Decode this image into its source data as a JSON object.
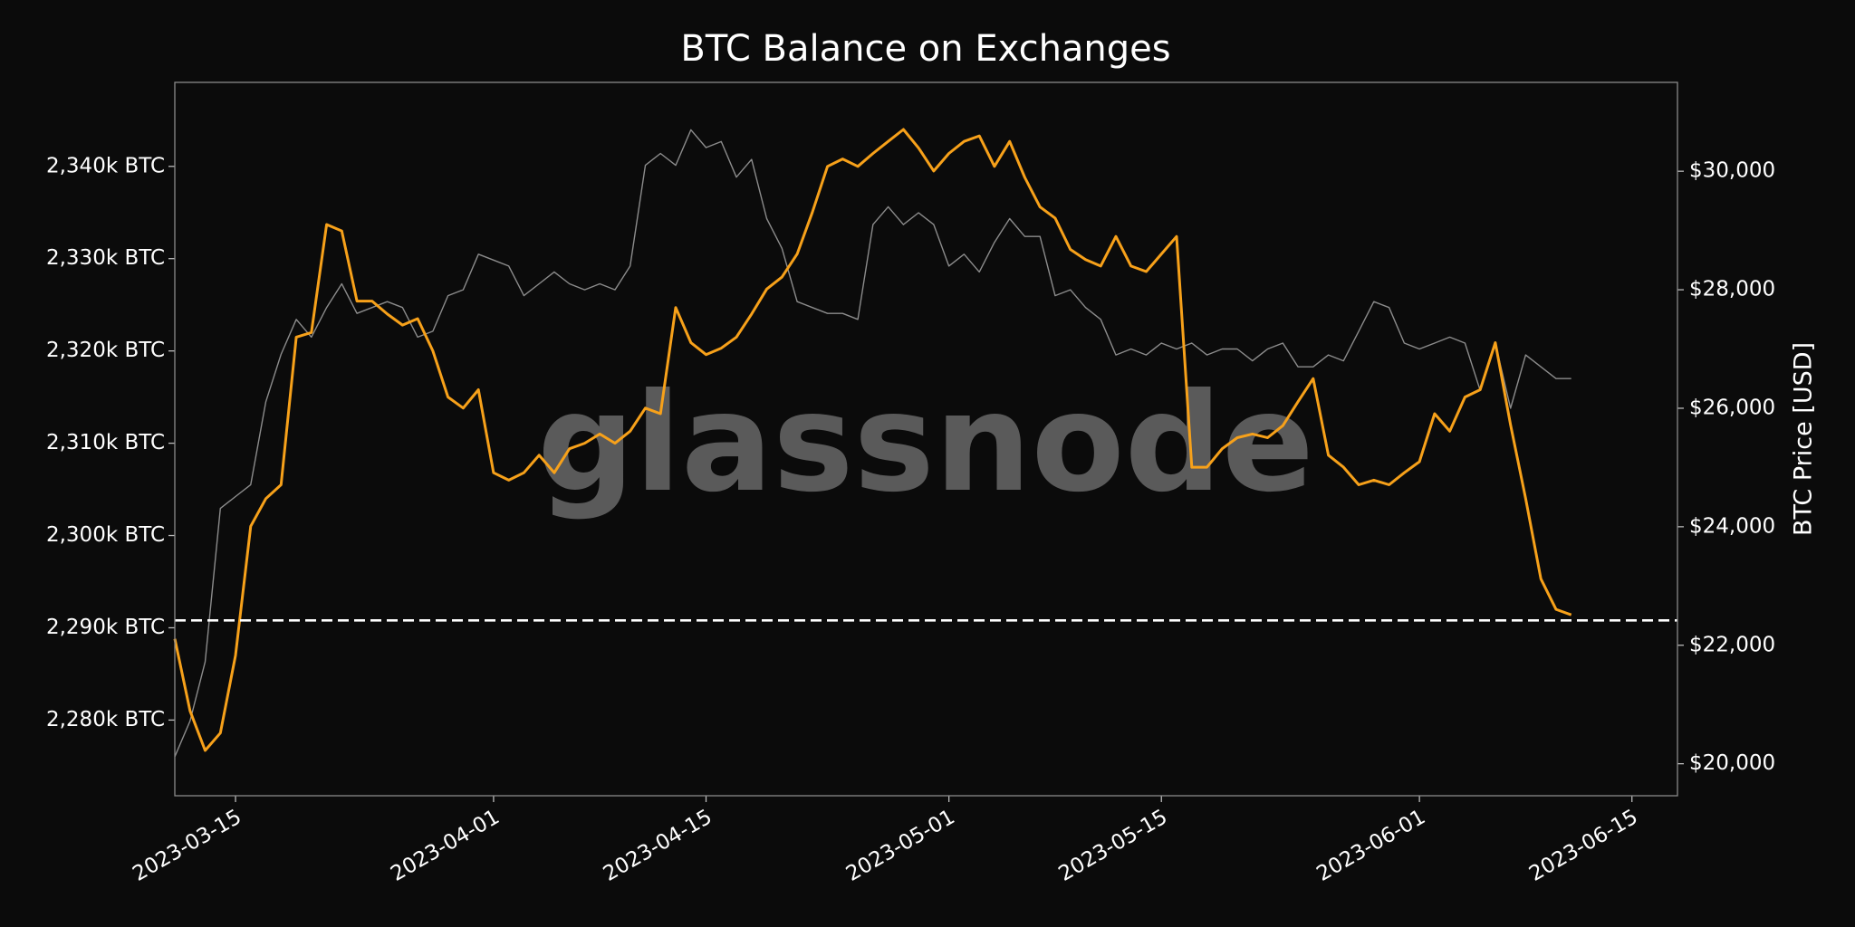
{
  "chart_data": {
    "type": "line",
    "title": "BTC Balance on Exchanges",
    "watermark": "glassnode",
    "y2label": "BTC Price [USD]",
    "x": [
      "2023-03-11",
      "2023-03-12",
      "2023-03-13",
      "2023-03-14",
      "2023-03-15",
      "2023-03-16",
      "2023-03-17",
      "2023-03-18",
      "2023-03-19",
      "2023-03-20",
      "2023-03-21",
      "2023-03-22",
      "2023-03-23",
      "2023-03-24",
      "2023-03-25",
      "2023-03-26",
      "2023-03-27",
      "2023-03-28",
      "2023-03-29",
      "2023-03-30",
      "2023-03-31",
      "2023-04-01",
      "2023-04-02",
      "2023-04-03",
      "2023-04-04",
      "2023-04-05",
      "2023-04-06",
      "2023-04-07",
      "2023-04-08",
      "2023-04-09",
      "2023-04-10",
      "2023-04-11",
      "2023-04-12",
      "2023-04-13",
      "2023-04-14",
      "2023-04-15",
      "2023-04-16",
      "2023-04-17",
      "2023-04-18",
      "2023-04-19",
      "2023-04-20",
      "2023-04-21",
      "2023-04-22",
      "2023-04-23",
      "2023-04-24",
      "2023-04-25",
      "2023-04-26",
      "2023-04-27",
      "2023-04-28",
      "2023-04-29",
      "2023-04-30",
      "2023-05-01",
      "2023-05-02",
      "2023-05-03",
      "2023-05-04",
      "2023-05-05",
      "2023-05-06",
      "2023-05-07",
      "2023-05-08",
      "2023-05-09",
      "2023-05-10",
      "2023-05-11",
      "2023-05-12",
      "2023-05-13",
      "2023-05-14",
      "2023-05-15",
      "2023-05-16",
      "2023-05-17",
      "2023-05-18",
      "2023-05-19",
      "2023-05-20",
      "2023-05-21",
      "2023-05-22",
      "2023-05-23",
      "2023-05-24",
      "2023-05-25",
      "2023-05-26",
      "2023-05-27",
      "2023-05-28",
      "2023-05-29",
      "2023-05-30",
      "2023-05-31",
      "2023-06-01",
      "2023-06-02",
      "2023-06-03",
      "2023-06-04",
      "2023-06-05",
      "2023-06-06",
      "2023-06-07",
      "2023-06-08",
      "2023-06-09",
      "2023-06-10",
      "2023-06-11"
    ],
    "series": [
      {
        "name": "BTC Price",
        "color": "#8c8c8c",
        "axis": "y2",
        "values": [
          20120,
          20720,
          21720,
          24310,
          24510,
          24710,
          26110,
          26910,
          27500,
          27200,
          27700,
          28100,
          27600,
          27700,
          27800,
          27700,
          27200,
          27300,
          27900,
          28000,
          28600,
          28500,
          28400,
          27900,
          28100,
          28300,
          28100,
          28000,
          28100,
          28000,
          28400,
          30100,
          30300,
          30100,
          30700,
          30400,
          30500,
          29900,
          30200,
          29200,
          28700,
          27800,
          27700,
          27600,
          27600,
          27500,
          29100,
          29400,
          29100,
          29300,
          29100,
          28400,
          28600,
          28300,
          28800,
          29200,
          28900,
          28900,
          27900,
          28000,
          27700,
          27500,
          26900,
          27000,
          26900,
          27100,
          27000,
          27100,
          26900,
          27000,
          27000,
          26800,
          27000,
          27100,
          26700,
          26700,
          26900,
          26800,
          27300,
          27800,
          27700,
          27100,
          27000,
          27100,
          27200,
          27100,
          26300,
          27100,
          26000,
          26900,
          26700,
          26500,
          26500
        ]
      },
      {
        "name": "BTC Balance on Exchanges",
        "color": "#f7a11a",
        "axis": "y",
        "values": [
          2288.8,
          2281,
          2276.7,
          2278.6,
          2287,
          2301,
          2304,
          2305.5,
          2321.5,
          2322,
          2333.7,
          2333,
          2325.4,
          2325.4,
          2324,
          2322.8,
          2323.5,
          2320,
          2315,
          2313.8,
          2315.8,
          2306.8,
          2306,
          2306.8,
          2308.7,
          2306.8,
          2309.4,
          2310,
          2311,
          2310,
          2311.3,
          2313.8,
          2313.2,
          2324.7,
          2320.9,
          2319.6,
          2320.3,
          2321.5,
          2324,
          2326.7,
          2328,
          2330.5,
          2335,
          2340,
          2340.8,
          2340,
          2341.4,
          2342.7,
          2344,
          2342,
          2339.5,
          2341.4,
          2342.7,
          2343.3,
          2340,
          2342.7,
          2338.8,
          2335.6,
          2334.4,
          2331,
          2329.9,
          2329.2,
          2332.4,
          2329.2,
          2328.6,
          2330.5,
          2332.4,
          2307.4,
          2307.4,
          2309.4,
          2310.6,
          2311,
          2310.6,
          2311.9,
          2314.5,
          2317,
          2308.7,
          2307.4,
          2305.5,
          2306,
          2305.5,
          2306.8,
          2308,
          2313.2,
          2311.3,
          2315,
          2315.8,
          2320.9,
          2312,
          2304,
          2295.3,
          2292,
          2291.4
        ]
      }
    ],
    "reference_line": 2290.8,
    "xlim": [
      "2023-03-11",
      "2023-06-18"
    ],
    "xticks": [
      "2023-03-15",
      "2023-04-01",
      "2023-04-15",
      "2023-05-01",
      "2023-05-15",
      "2023-06-01",
      "2023-06-15"
    ],
    "ylim": [
      2271.8,
      2349.1
    ],
    "yticks": [
      {
        "value": 2280,
        "label": "2,280k BTC"
      },
      {
        "value": 2290,
        "label": "2,290k BTC"
      },
      {
        "value": 2300,
        "label": "2,300k BTC"
      },
      {
        "value": 2310,
        "label": "2,310k BTC"
      },
      {
        "value": 2320,
        "label": "2,320k BTC"
      },
      {
        "value": 2330,
        "label": "2,330k BTC"
      },
      {
        "value": 2340,
        "label": "2,340k BTC"
      }
    ],
    "y2lim": [
      19460,
      31500
    ],
    "y2ticks": [
      {
        "value": 20000,
        "label": "$20,000"
      },
      {
        "value": 22000,
        "label": "$22,000"
      },
      {
        "value": 24000,
        "label": "$24,000"
      },
      {
        "value": 26000,
        "label": "$26,000"
      },
      {
        "value": 28000,
        "label": "$28,000"
      },
      {
        "value": 30000,
        "label": "$30,000"
      }
    ],
    "grid": false
  }
}
